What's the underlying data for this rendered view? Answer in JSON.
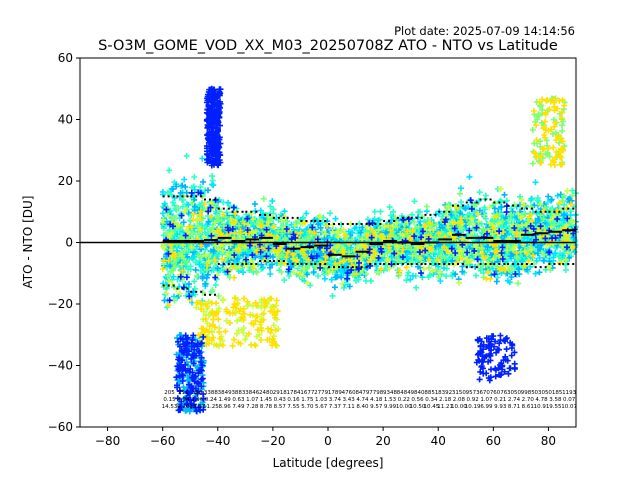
{
  "plot_date": "Plot date: 2025-07-09 14:14:56",
  "chart_data": {
    "type": "scatter",
    "title": "S-O3M_GOME_VOD_XX_M03_20250708Z ATO - NTO vs Latitude",
    "xlabel": "Latitude [degrees]",
    "ylabel": "ATO - NTO [DU]",
    "xlim": [
      -90,
      90
    ],
    "ylim": [
      -60,
      60
    ],
    "xticks": [
      -80,
      -60,
      -40,
      -20,
      0,
      20,
      40,
      60,
      80
    ],
    "yticks": [
      -60,
      -40,
      -20,
      0,
      20,
      40,
      60
    ],
    "xtick_labels": [
      "−80",
      "−60",
      "−40",
      "−20",
      "0",
      "20",
      "40",
      "60",
      "80"
    ],
    "ytick_labels": [
      "−60",
      "−40",
      "−20",
      "0",
      "20",
      "40",
      "60"
    ],
    "grid": false,
    "zero_line": 0,
    "colors": {
      "cyan": "#00e5ff",
      "sky": "#00b4ff",
      "mint": "#2affc8",
      "lime": "#80ff70",
      "yellowgreen": "#c8ff40",
      "yellow": "#ffe000",
      "blue": "#0020ff",
      "line": "#000000"
    },
    "bins": {
      "lat": [
        -57.5,
        -52.5,
        -47.5,
        -42.5,
        -37.5,
        -32.5,
        -27.5,
        -22.5,
        -17.5,
        -12.5,
        -7.5,
        -2.5,
        2.5,
        7.5,
        12.5,
        17.5,
        22.5,
        27.5,
        32.5,
        37.5,
        42.5,
        47.5,
        52.5,
        57.5,
        62.5,
        67.5,
        72.5,
        77.5,
        82.5,
        87.5
      ],
      "mean": [
        0.5,
        0.5,
        0.5,
        0.8,
        1.5,
        0.5,
        1.0,
        1.5,
        -0.5,
        -2.0,
        -1.5,
        -1.0,
        -4.0,
        -4.5,
        -3.0,
        -0.5,
        0.5,
        0,
        -0.5,
        0,
        1.0,
        2.5,
        1.5,
        1.5,
        0.5,
        0.5,
        2.5,
        3.0,
        3.5,
        4.0
      ],
      "upper": [
        15,
        15,
        15,
        14,
        11,
        10,
        10,
        9,
        8,
        8,
        7,
        7,
        6,
        6,
        6,
        6,
        7,
        8,
        8,
        9,
        10,
        12,
        13,
        14,
        13,
        12,
        11,
        10,
        10,
        11
      ],
      "lower": [
        -14,
        -15,
        -16,
        -17,
        -7,
        -7,
        -7,
        -6,
        -6,
        -7,
        -7,
        -7,
        -8,
        -8,
        -8,
        -7,
        -7,
        -7,
        -7,
        -7,
        -7,
        -7,
        -8,
        -7,
        -7,
        -7,
        -7,
        -8,
        -7,
        -7
      ],
      "stats_line1": [
        "205",
        "211",
        "350",
        "3388",
        "3849",
        "3883",
        "3846",
        "2480",
        "2918",
        "1784",
        "1677",
        "2779",
        "1789",
        "4760",
        "8479",
        "7798",
        "9348",
        "8484",
        "9840",
        "8851",
        "8392",
        "3150",
        "9573",
        "6707",
        "6076",
        "3050",
        "9985",
        "0305",
        "0185",
        "1193"
      ],
      "stats_line2": [
        "0.15",
        "4.94",
        "3.96",
        "0.24",
        "1.49",
        "0.63",
        "1.07",
        "1.45",
        "0.43",
        "0.16",
        "1.75",
        "1.03",
        "3.74",
        "3.43",
        "4.74",
        "4.18",
        "1.53",
        "0.22",
        "0.56",
        "0.34",
        "2.18",
        "2.08",
        "0.92",
        "1.07",
        "0.21",
        "2.74",
        "2.70",
        "4.78",
        "3.58",
        "0.07"
      ],
      "stats_line3": [
        "14.53",
        "9.20",
        "13.87",
        "11.25",
        "8.96",
        "7.49",
        "7.28",
        "8.78",
        "8.57",
        "7.55",
        "5.70",
        "5.67",
        "7.37",
        "7.11",
        "8.40",
        "9.57",
        "9.99",
        "10.00",
        "10.50",
        "10.45",
        "11.21",
        "10.00",
        "10.19",
        "6.99",
        "9.93",
        "8.71",
        "8.61",
        "10.91",
        "9.55",
        "10.07"
      ]
    }
  }
}
